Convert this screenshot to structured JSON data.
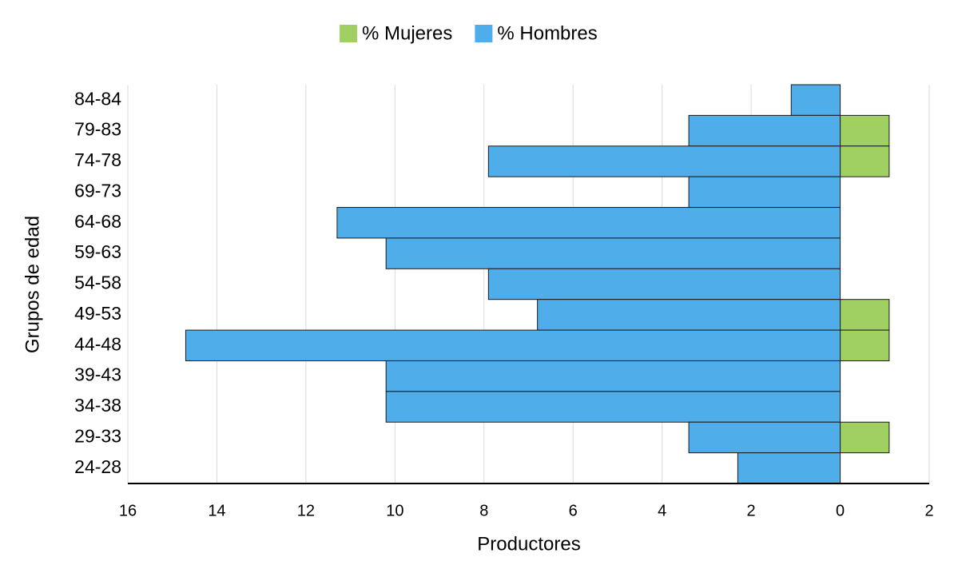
{
  "chart_data": {
    "type": "bar",
    "orientation": "horizontal",
    "stacked": false,
    "x_label": "Productores",
    "y_label": "Grupos de edad",
    "categories": [
      "84-84",
      "79-83",
      "74-78",
      "69-73",
      "64-68",
      "59-63",
      "54-58",
      "49-53",
      "44-48",
      "39-43",
      "34-38",
      "29-33",
      "24-28"
    ],
    "series": [
      {
        "name": "% Mujeres",
        "color": "#a0d062",
        "values": [
          0,
          1.1,
          1.1,
          0,
          0,
          0,
          0,
          1.1,
          1.1,
          0,
          0,
          1.1,
          0
        ]
      },
      {
        "name": "% Hombres",
        "color": "#4fadea",
        "values": [
          -1.1,
          -3.4,
          -7.9,
          -3.4,
          -11.3,
          -10.2,
          -7.9,
          -6.8,
          -14.7,
          -10.2,
          -10.2,
          -3.4,
          -2.3
        ]
      }
    ],
    "xlim": [
      -16,
      2
    ],
    "xticks": [
      {
        "value": -16,
        "label": "16"
      },
      {
        "value": -14,
        "label": "14"
      },
      {
        "value": -12,
        "label": "12"
      },
      {
        "value": -10,
        "label": "10"
      },
      {
        "value": -8,
        "label": "8"
      },
      {
        "value": -6,
        "label": "6"
      },
      {
        "value": -4,
        "label": "4"
      },
      {
        "value": -2,
        "label": "2"
      },
      0,
      2
    ],
    "grid": true,
    "legend": "top"
  }
}
